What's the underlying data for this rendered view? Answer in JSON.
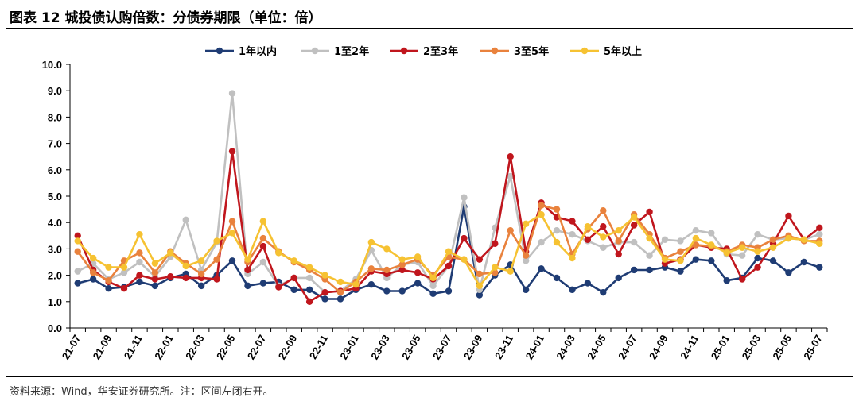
{
  "header": {
    "title": "图表 12 城投债认购倍数：分债券期限（单位：倍）"
  },
  "footer": {
    "source": "资料来源：Wind，华安证券研究所。注：区间左闭右开。"
  },
  "chart_data": {
    "type": "line",
    "title": "图表 12 城投债认购倍数：分债券期限（单位：倍）",
    "xlabel": "",
    "ylabel": "",
    "ylim": [
      0,
      10
    ],
    "y_ticks": [
      "0.0",
      "1.0",
      "2.0",
      "3.0",
      "4.0",
      "5.0",
      "6.0",
      "7.0",
      "8.0",
      "9.0",
      "10.0"
    ],
    "x": [
      "21-07",
      "21-08",
      "21-09",
      "21-10",
      "21-11",
      "21-12",
      "22-01",
      "22-02",
      "22-03",
      "22-04",
      "22-05",
      "22-06",
      "22-07",
      "22-08",
      "22-09",
      "22-10",
      "22-11",
      "22-12",
      "23-01",
      "23-02",
      "23-03",
      "23-04",
      "23-05",
      "23-06",
      "23-07",
      "23-08",
      "23-09",
      "23-10",
      "23-11",
      "23-12",
      "24-01",
      "24-02",
      "24-03",
      "24-04",
      "24-05",
      "24-06",
      "24-07",
      "24-08",
      "24-09",
      "24-10",
      "24-11",
      "24-12",
      "25-01",
      "25-02",
      "25-03",
      "25-04",
      "25-05",
      "25-06",
      "25-07"
    ],
    "x_tick_labels": [
      "21-07",
      "21-09",
      "21-11",
      "22-01",
      "22-03",
      "22-05",
      "22-07",
      "22-09",
      "22-11",
      "23-01",
      "23-03",
      "23-05",
      "23-07",
      "23-09",
      "23-11",
      "24-01",
      "24-03",
      "24-05",
      "24-07",
      "24-09",
      "24-11",
      "25-01",
      "25-03",
      "25-05",
      "25-07"
    ],
    "grid": false,
    "legend_position": "top-center",
    "series": [
      {
        "name": "1年以内",
        "color": "#1f3c74",
        "values": [
          1.7,
          1.85,
          1.5,
          1.55,
          1.75,
          1.6,
          1.9,
          2.05,
          1.6,
          2.0,
          2.55,
          1.6,
          1.7,
          1.75,
          1.45,
          1.45,
          1.1,
          1.1,
          1.45,
          1.65,
          1.4,
          1.4,
          1.7,
          1.3,
          1.4,
          4.6,
          1.25,
          2.0,
          2.4,
          1.45,
          2.25,
          1.9,
          1.45,
          1.7,
          1.35,
          1.9,
          2.2,
          2.2,
          2.3,
          2.15,
          2.6,
          2.55,
          1.8,
          1.9,
          2.65,
          2.55,
          2.1,
          2.5,
          2.3
        ]
      },
      {
        "name": "1至2年",
        "color": "#c0c0c0",
        "values": [
          2.15,
          2.45,
          1.85,
          2.1,
          2.5,
          1.95,
          2.7,
          4.1,
          2.2,
          3.25,
          8.9,
          2.05,
          2.5,
          1.6,
          1.9,
          1.9,
          1.35,
          1.4,
          1.85,
          2.95,
          1.9,
          2.4,
          2.5,
          1.6,
          2.35,
          4.95,
          1.45,
          3.8,
          5.75,
          2.55,
          3.25,
          3.7,
          3.55,
          3.3,
          3.05,
          3.25,
          3.25,
          2.75,
          3.35,
          3.3,
          3.7,
          3.6,
          2.8,
          2.75,
          3.55,
          3.35,
          3.4,
          3.35,
          3.55
        ]
      },
      {
        "name": "2至3年",
        "color": "#c0161d",
        "values": [
          3.5,
          2.2,
          1.75,
          1.5,
          2.0,
          1.85,
          1.95,
          1.9,
          1.9,
          1.85,
          6.7,
          2.2,
          3.1,
          1.55,
          1.9,
          1.0,
          1.35,
          1.4,
          1.5,
          2.15,
          2.05,
          2.2,
          2.1,
          1.85,
          2.35,
          3.4,
          2.6,
          3.2,
          6.5,
          2.9,
          4.75,
          4.2,
          4.05,
          3.35,
          3.85,
          2.8,
          3.9,
          4.4,
          2.45,
          2.6,
          3.15,
          3.05,
          3.0,
          1.85,
          2.3,
          3.2,
          4.25,
          3.35,
          3.8
        ]
      },
      {
        "name": "3至5年",
        "color": "#e9823d",
        "values": [
          2.9,
          2.1,
          1.8,
          2.55,
          2.85,
          2.1,
          2.9,
          2.45,
          2.05,
          2.6,
          4.05,
          2.5,
          3.4,
          2.9,
          2.5,
          2.2,
          1.85,
          1.35,
          1.75,
          2.25,
          2.2,
          2.4,
          2.6,
          2.0,
          2.7,
          2.6,
          2.05,
          2.1,
          3.7,
          2.75,
          4.65,
          4.5,
          2.8,
          3.75,
          4.45,
          3.3,
          4.3,
          3.55,
          2.65,
          2.9,
          3.15,
          3.1,
          2.9,
          3.15,
          3.05,
          3.35,
          3.5,
          3.3,
          3.3
        ]
      },
      {
        "name": "5年以上",
        "color": "#f6c232",
        "values": [
          3.3,
          2.65,
          2.3,
          2.3,
          3.55,
          2.45,
          2.85,
          2.35,
          2.55,
          3.3,
          3.6,
          2.6,
          4.05,
          2.85,
          2.55,
          2.3,
          2.0,
          1.75,
          1.65,
          3.25,
          3.0,
          2.6,
          2.7,
          1.9,
          2.9,
          2.6,
          1.6,
          2.3,
          2.15,
          3.95,
          4.3,
          3.25,
          2.65,
          3.85,
          3.45,
          3.7,
          4.2,
          3.4,
          2.6,
          2.55,
          3.4,
          3.15,
          2.85,
          3.05,
          2.9,
          3.05,
          3.4,
          3.35,
          3.2
        ]
      }
    ]
  }
}
